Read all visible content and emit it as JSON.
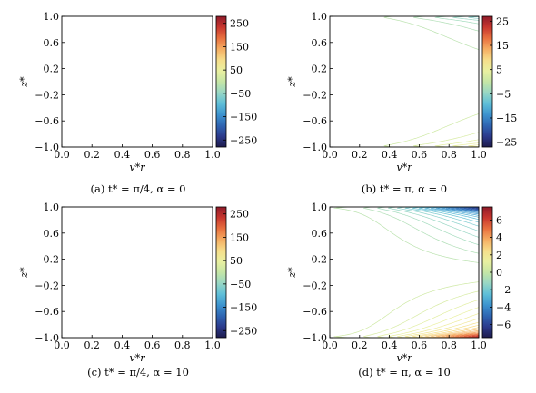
{
  "chart_data": [
    {
      "type": "contour",
      "caption": "(a) t* = π/4, α = 0",
      "xlabel": "v*r",
      "ylabel": "z*",
      "xlim": [
        0.0,
        1.0
      ],
      "ylim": [
        -1.0,
        1.0
      ],
      "xticks": [
        "0.0",
        "0.2",
        "0.4",
        "0.6",
        "0.8",
        "1.0"
      ],
      "yticks": [
        "1.0",
        "0.6",
        "0.2",
        "−0.2",
        "−0.6",
        "−1.0"
      ],
      "colorbar": {
        "range": [
          -280,
          280
        ],
        "ticks": [
          {
            "v": 250,
            "label": "250"
          },
          {
            "v": 150,
            "label": "150"
          },
          {
            "v": 50,
            "label": "50"
          },
          {
            "v": -50,
            "label": "−50"
          },
          {
            "v": -150,
            "label": "−150"
          },
          {
            "v": -250,
            "label": "−250"
          }
        ]
      },
      "field": "pi4",
      "grid": false
    },
    {
      "type": "contour",
      "caption": "(b) t* = π, α = 0",
      "xlabel": "v*r",
      "ylabel": "z*",
      "xlim": [
        0.0,
        1.0
      ],
      "ylim": [
        -1.0,
        1.0
      ],
      "xticks": [
        "0.0",
        "0.2",
        "0.4",
        "0.6",
        "0.8",
        "1.0"
      ],
      "yticks": [
        "1.0",
        "0.6",
        "0.2",
        "−0.2",
        "−0.6",
        "−1.0"
      ],
      "colorbar": {
        "range": [
          -27,
          27
        ],
        "ticks": [
          {
            "v": 25,
            "label": "25"
          },
          {
            "v": 15,
            "label": "15"
          },
          {
            "v": 5,
            "label": "5"
          },
          {
            "v": -5,
            "label": "−5"
          },
          {
            "v": -15,
            "label": "−15"
          },
          {
            "v": -25,
            "label": "−25"
          }
        ]
      },
      "field": "pi",
      "grid": false
    },
    {
      "type": "contour",
      "caption": "(c) t* = π/4, α = 10",
      "xlabel": "v*r",
      "ylabel": "z*",
      "xlim": [
        0.0,
        1.0
      ],
      "ylim": [
        -1.0,
        1.0
      ],
      "xticks": [
        "0.0",
        "0.2",
        "0.4",
        "0.6",
        "0.8",
        "1.0"
      ],
      "yticks": [
        "1.0",
        "0.6",
        "0.2",
        "−0.2",
        "−0.6",
        "−1.0"
      ],
      "colorbar": {
        "range": [
          -280,
          280
        ],
        "ticks": [
          {
            "v": 250,
            "label": "250"
          },
          {
            "v": 150,
            "label": "150"
          },
          {
            "v": 50,
            "label": "50"
          },
          {
            "v": -50,
            "label": "−50"
          },
          {
            "v": -150,
            "label": "−150"
          },
          {
            "v": -250,
            "label": "−250"
          }
        ]
      },
      "field": "pi4",
      "grid": false
    },
    {
      "type": "contour",
      "caption": "(d) t* = π, α = 10",
      "xlabel": "v*r",
      "ylabel": "z*",
      "xlim": [
        0.0,
        1.0
      ],
      "ylim": [
        -1.0,
        1.0
      ],
      "xticks": [
        "0.0",
        "0.2",
        "0.4",
        "0.6",
        "0.8",
        "1.0"
      ],
      "yticks": [
        "1.0",
        "0.6",
        "0.2",
        "−0.2",
        "−0.6",
        "−1.0"
      ],
      "colorbar": {
        "range": [
          -7.5,
          7.5
        ],
        "ticks": [
          {
            "v": 6,
            "label": "6"
          },
          {
            "v": 4,
            "label": "4"
          },
          {
            "v": 2,
            "label": "2"
          },
          {
            "v": 0,
            "label": "0"
          },
          {
            "v": -2,
            "label": "−2"
          },
          {
            "v": -4,
            "label": "−4"
          },
          {
            "v": -6,
            "label": "−6"
          }
        ]
      },
      "field": "pi",
      "grid": false
    }
  ],
  "colormap": [
    "#1e1b4d",
    "#2c3a8c",
    "#2f66b3",
    "#3d94cf",
    "#5fbfd8",
    "#99d7c4",
    "#c5e6a6",
    "#e9f0a0",
    "#f6dd8a",
    "#f5ad62",
    "#e8703f",
    "#c8362e",
    "#8f1b2a"
  ]
}
